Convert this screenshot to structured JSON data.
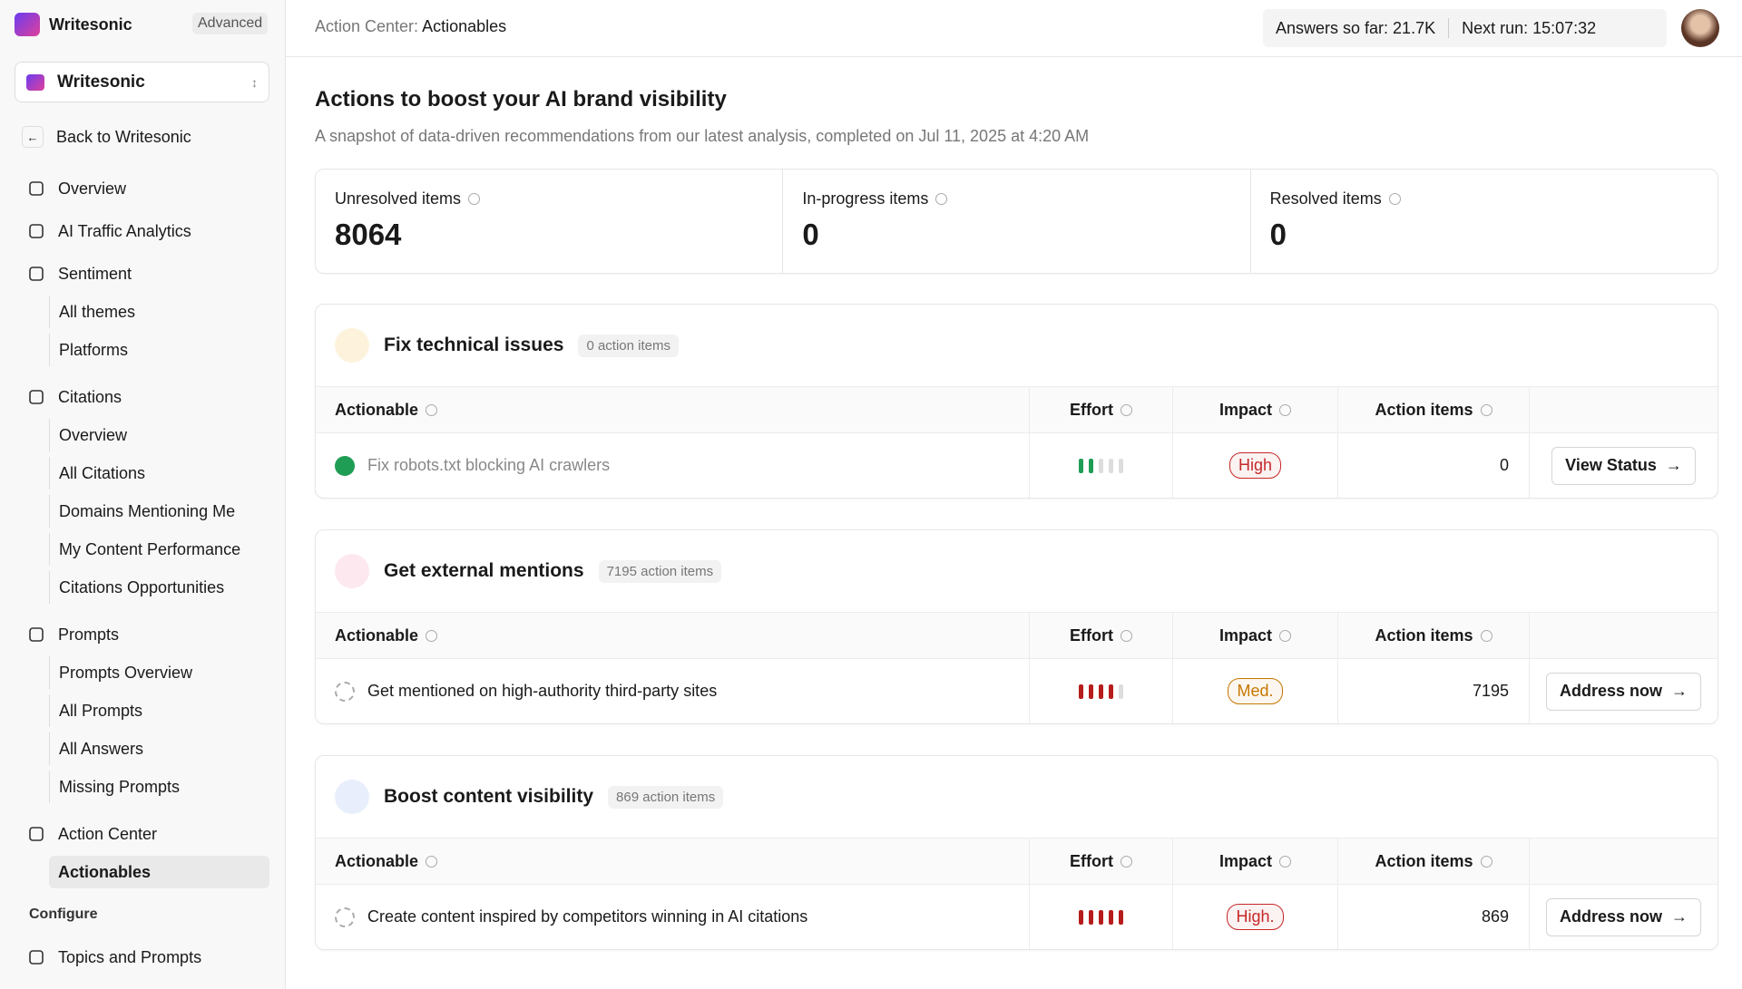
{
  "sidebar": {
    "brand": "Writesonic",
    "plan": "Advanced",
    "workspace": "Writesonic",
    "back": "Back to Writesonic",
    "nav": [
      {
        "label": "Overview",
        "children": []
      },
      {
        "label": "AI Traffic Analytics",
        "children": []
      },
      {
        "label": "Sentiment",
        "children": [
          "All themes",
          "Platforms"
        ]
      },
      {
        "label": "Citations",
        "children": [
          "Overview",
          "All Citations",
          "Domains Mentioning Me",
          "My Content Performance",
          "Citations Opportunities"
        ]
      },
      {
        "label": "Prompts",
        "children": [
          "Prompts Overview",
          "All Prompts",
          "All Answers",
          "Missing Prompts"
        ]
      },
      {
        "label": "Action Center",
        "children": [
          "Actionables"
        ]
      }
    ],
    "configure_heading": "Configure",
    "configure": [
      "Topics and Prompts"
    ]
  },
  "header": {
    "breadcrumb_prefix": "Action Center:",
    "breadcrumb_current": "Actionables",
    "answers": "Answers so far: 21.7K",
    "next_run": "Next run: 15:07:32"
  },
  "main": {
    "title": "Actions to boost your AI brand visibility",
    "subtitle": "A snapshot of data-driven recommendations from our latest analysis, completed on Jul 11, 2025 at 4:20 AM",
    "stats": [
      {
        "label": "Unresolved items",
        "value": "8064"
      },
      {
        "label": "In-progress items",
        "value": "0"
      },
      {
        "label": "Resolved items",
        "value": "0"
      }
    ],
    "columns": [
      "Actionable",
      "Effort",
      "Impact",
      "Action items"
    ],
    "sections": [
      {
        "title": "Fix technical issues",
        "count": "0 action items",
        "icon_color": "#fdf3dc",
        "row": {
          "name": "Fix robots.txt blocking AI crawlers",
          "completed": true,
          "effort": 2,
          "effort_max": 5,
          "effort_color": "#1f9d55",
          "impact": "High",
          "impact_color": "#c62828",
          "action_items": "0",
          "button": "View Status"
        }
      },
      {
        "title": "Get external mentions",
        "count": "7195 action items",
        "icon_color": "#fde8ef",
        "row": {
          "name": "Get mentioned on high-authority third-party sites",
          "completed": false,
          "effort": 4,
          "effort_max": 5,
          "effort_color": "#b71c1c",
          "impact": "Med.",
          "impact_color": "#c77700",
          "action_items": "7195",
          "button": "Address now"
        }
      },
      {
        "title": "Boost content visibility",
        "count": "869 action items",
        "icon_color": "#e8eefc",
        "row": {
          "name": "Create content inspired by competitors winning in AI citations",
          "completed": false,
          "effort": 5,
          "effort_max": 5,
          "effort_color": "#b71c1c",
          "impact": "High.",
          "impact_color": "#c62828",
          "action_items": "869",
          "button": "Address now"
        }
      }
    ]
  }
}
